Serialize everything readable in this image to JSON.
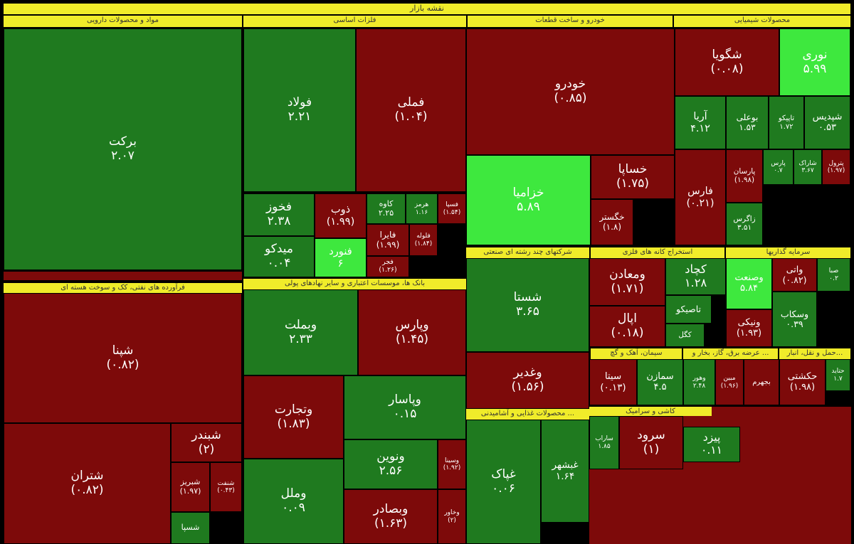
{
  "title": "نقشه بازار",
  "sectors": [
    {
      "title": "مواد و محصولات دارویی",
      "tiles": [
        {
          "name": "برکت",
          "change": "۲.۰۷",
          "color": "#1f7a1f"
        }
      ]
    },
    {
      "title": "فلزات اساسی",
      "tiles": [
        {
          "name": "فولاد",
          "change": "۲.۲۱",
          "color": "#1f7a1f"
        },
        {
          "name": "فملی",
          "change": "(۱.۰۴)",
          "color": "#7d0a0a"
        },
        {
          "name": "فخوز",
          "change": "۲.۳۸",
          "color": "#1f7a1f"
        },
        {
          "name": "میدکو",
          "change": "۰.۰۴",
          "color": "#1f7a1f"
        },
        {
          "name": "ذوب",
          "change": "(۱.۹۹)",
          "color": "#7d0a0a"
        },
        {
          "name": "فنورد",
          "change": "۶",
          "color": "#3ee83e"
        },
        {
          "name": "کاوه",
          "change": "۲.۲۵",
          "color": "#1f7a1f"
        },
        {
          "name": "هرمز",
          "change": "۱.۱۶",
          "color": "#1f7a1f"
        },
        {
          "name": "فسپا",
          "change": "(۱.۵۴)",
          "color": "#7d0a0a"
        },
        {
          "name": "فایرا",
          "change": "(۱.۹۹)",
          "color": "#7d0a0a"
        },
        {
          "name": "فلوله",
          "change": "(۱.۸۴)",
          "color": "#7d0a0a"
        },
        {
          "name": "فجر",
          "change": "(۱.۲۶)",
          "color": "#7d0a0a"
        }
      ]
    },
    {
      "title": "خودرو و ساخت قطعات",
      "tiles": [
        {
          "name": "خودرو",
          "change": "(۰.۸۵)",
          "color": "#7d0a0a"
        },
        {
          "name": "خزامیا",
          "change": "۵.۸۹",
          "color": "#3ee83e"
        },
        {
          "name": "خساپا",
          "change": "(۱.۷۵)",
          "color": "#7d0a0a"
        },
        {
          "name": "خگستر",
          "change": "(۱.۸)",
          "color": "#7d0a0a"
        }
      ]
    },
    {
      "title": "محصولات شیمیایی",
      "tiles": [
        {
          "name": "شگویا",
          "change": "(۰.۰۸)",
          "color": "#7d0a0a"
        },
        {
          "name": "نوری",
          "change": "۵.۹۹",
          "color": "#3ee83e"
        },
        {
          "name": "آریا",
          "change": "۴.۱۲",
          "color": "#1f7a1f"
        },
        {
          "name": "بوعلی",
          "change": "۱.۵۳",
          "color": "#1f7a1f"
        },
        {
          "name": "تاپیکو",
          "change": "۱.۷۲",
          "color": "#1f7a1f"
        },
        {
          "name": "شپدیس",
          "change": "۰.۵۳",
          "color": "#1f7a1f"
        },
        {
          "name": "فارس",
          "change": "(۰.۲۱)",
          "color": "#7d0a0a"
        },
        {
          "name": "پارسان",
          "change": "(۱.۹۸)",
          "color": "#7d0a0a"
        },
        {
          "name": "زاگرس",
          "change": "۳.۵۱",
          "color": "#1f7a1f"
        },
        {
          "name": "پارس",
          "change": "۰.۷",
          "color": "#1f7a1f"
        },
        {
          "name": "شاراک",
          "change": "۳.۶۷",
          "color": "#1f7a1f"
        },
        {
          "name": "پترول",
          "change": "(۱.۹۷)",
          "color": "#7d0a0a"
        }
      ]
    },
    {
      "title": "فرآورده های نفتی، کک و سوخت هسته ای",
      "tiles": [
        {
          "name": "شپنا",
          "change": "(۰.۸۲)",
          "color": "#7d0a0a"
        },
        {
          "name": "شتران",
          "change": "(۰.۸۲)",
          "color": "#7d0a0a"
        },
        {
          "name": "شبندر",
          "change": "(۲)",
          "color": "#7d0a0a"
        },
        {
          "name": "شبریز",
          "change": "(۱.۹۷)",
          "color": "#7d0a0a"
        },
        {
          "name": "شنفت",
          "change": "(۰.۴۳)",
          "color": "#7d0a0a"
        },
        {
          "name": "شسپا",
          "change": null,
          "color": "#1f7a1f"
        }
      ]
    },
    {
      "title": "بانک ها، موسسات اعتباری و سایر نهادهای پولی",
      "tiles": [
        {
          "name": "وبملت",
          "change": "۲.۳۳",
          "color": "#1f7a1f"
        },
        {
          "name": "وپارس",
          "change": "(۱.۴۵)",
          "color": "#7d0a0a"
        },
        {
          "name": "وتجارت",
          "change": "(۱.۸۳)",
          "color": "#7d0a0a"
        },
        {
          "name": "وپاسار",
          "change": "۰.۱۵",
          "color": "#1f7a1f"
        },
        {
          "name": "ونوین",
          "change": "۲.۵۶",
          "color": "#1f7a1f"
        },
        {
          "name": "وسینا",
          "change": "(۱.۹۲)",
          "color": "#7d0a0a"
        },
        {
          "name": "وملل",
          "change": "۰.۰۹",
          "color": "#1f7a1f"
        },
        {
          "name": "وبصادر",
          "change": "(۱.۶۳)",
          "color": "#7d0a0a"
        },
        {
          "name": "وخاور",
          "change": "(۲)",
          "color": "#7d0a0a"
        }
      ]
    },
    {
      "title": "شرکتهای چند رشته ای صنعتی",
      "tiles": [
        {
          "name": "شستا",
          "change": "۳.۶۵",
          "color": "#1f7a1f"
        },
        {
          "name": "وغدیر",
          "change": "(۱.۵۶)",
          "color": "#7d0a0a"
        }
      ]
    },
    {
      "title": "استخراج کانه های فلزی",
      "tiles": [
        {
          "name": "ومعادن",
          "change": "(۱.۷۱)",
          "color": "#7d0a0a"
        },
        {
          "name": "کچاد",
          "change": "۱.۲۸",
          "color": "#1f7a1f"
        },
        {
          "name": "اپال",
          "change": "(۰.۱۸)",
          "color": "#7d0a0a"
        },
        {
          "name": "تاصیکو",
          "change": null,
          "color": "#1f7a1f"
        },
        {
          "name": "کگل",
          "change": null,
          "color": "#1f7a1f"
        }
      ]
    },
    {
      "title": "سرمایه گذاریها",
      "tiles": [
        {
          "name": "وصنعت",
          "change": "۵.۸۴",
          "color": "#3ee83e"
        },
        {
          "name": "واتی",
          "change": "(۰.۸۲)",
          "color": "#7d0a0a"
        },
        {
          "name": "صبا",
          "change": "۰.۲",
          "color": "#1f7a1f"
        },
        {
          "name": "وسکاب",
          "change": "۰.۳۹",
          "color": "#1f7a1f"
        },
        {
          "name": "ونیکی",
          "change": "(۱.۹۳)",
          "color": "#7d0a0a"
        }
      ]
    },
    {
      "title": "سیمان، آهک و گچ",
      "tiles": [
        {
          "name": "سیتا",
          "change": "(۰.۱۳)",
          "color": "#7d0a0a"
        },
        {
          "name": "سمازن",
          "change": "۴.۵",
          "color": "#1f7a1f"
        }
      ]
    },
    {
      "title": "عرضه برق، گاز، بخار و ...",
      "tiles": [
        {
          "name": "وهور",
          "change": "۲.۴۸",
          "color": "#1f7a1f"
        },
        {
          "name": "مبین",
          "change": "(۱.۹۶)",
          "color": "#7d0a0a"
        },
        {
          "name": "بجهرم",
          "change": null,
          "color": "#7d0a0a"
        }
      ]
    },
    {
      "title": "حمل و نقل، انبار...",
      "tiles": [
        {
          "name": "حکشتی",
          "change": "(۱.۹۸)",
          "color": "#7d0a0a"
        },
        {
          "name": "حتاید",
          "change": "۱.۷",
          "color": "#1f7a1f"
        }
      ]
    },
    {
      "title": "محصولات غذایی و آشامیدنی ...",
      "tiles": [
        {
          "name": "غپاک",
          "change": "۰.۰۶",
          "color": "#1f7a1f"
        },
        {
          "name": "غبشهر",
          "change": "۱.۶۴",
          "color": "#1f7a1f"
        }
      ]
    },
    {
      "title": "کاشی و سرامیک",
      "tiles": [
        {
          "name": "ساراب",
          "change": "۱.۸۵",
          "color": "#1f7a1f"
        },
        {
          "name": "سرود",
          "change": "(۱)",
          "color": "#7d0a0a"
        },
        {
          "name": "پیزد",
          "change": "۰.۱۱",
          "color": "#1f7a1f"
        }
      ]
    }
  ]
}
